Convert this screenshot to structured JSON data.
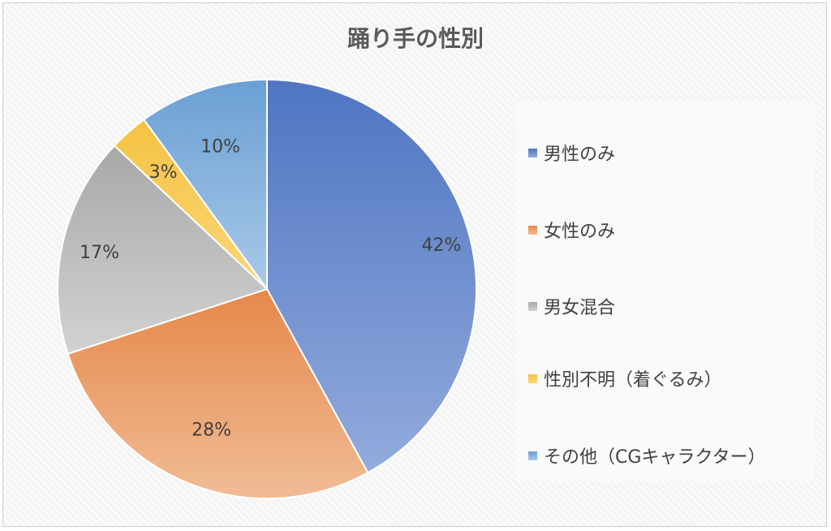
{
  "chart_data": {
    "type": "pie",
    "title": "踊り手の性別",
    "categories": [
      "男性のみ",
      "女性のみ",
      "男女混合",
      "性別不明（着ぐるみ）",
      "その他（CGキャラクター）"
    ],
    "values": [
      42,
      28,
      17,
      3,
      10
    ],
    "data_labels": [
      "42%",
      "28%",
      "17%",
      "3%",
      "10%"
    ],
    "colors": [
      "#4f75c3",
      "#e6884a",
      "#a8a8a8",
      "#f5c342",
      "#6a9fd4"
    ],
    "colors_light": [
      "#93abdc",
      "#f0bc95",
      "#d2d2d2",
      "#fad679",
      "#a9c9e8"
    ],
    "legend_position": "right"
  }
}
